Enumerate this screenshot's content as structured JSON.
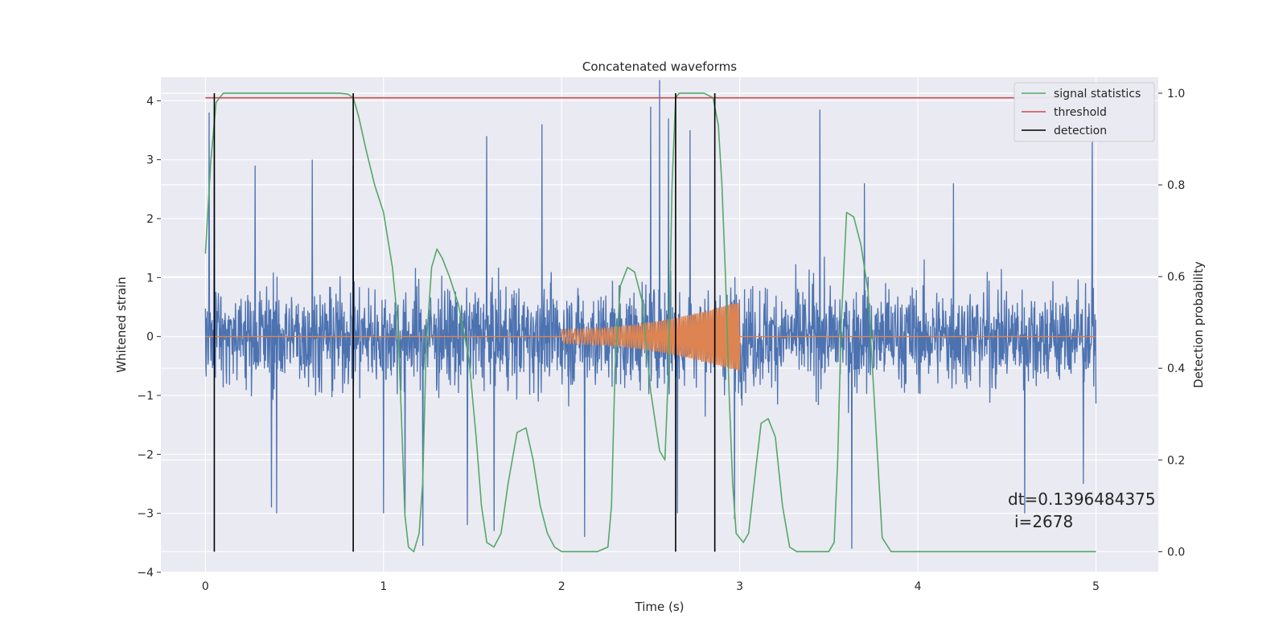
{
  "chart_data": {
    "type": "line",
    "title": "Concatenated waveforms",
    "xlabel": "Time (s)",
    "ylabel": "Whitened strain",
    "y2label": "Detection probability",
    "xlim": [
      -0.25,
      5.35
    ],
    "ylim": [
      -4.0,
      4.4
    ],
    "y2lim": [
      -0.045,
      1.035
    ],
    "xticks": [
      0,
      1,
      2,
      3,
      4,
      5
    ],
    "yticks": [
      -4,
      -3,
      -2,
      -1,
      0,
      1,
      2,
      3,
      4
    ],
    "y2ticks": [
      0.0,
      0.2,
      0.4,
      0.6,
      0.8,
      1.0
    ],
    "ytick_labels": [
      "−4",
      "−3",
      "−2",
      "−1",
      "0",
      "1",
      "2",
      "3",
      "4"
    ],
    "y2tick_labels": [
      "0.0",
      "0.2",
      "0.4",
      "0.6",
      "0.8",
      "1.0"
    ],
    "grid": true,
    "legend_position": "top-right",
    "annotation_dt": "dt=0.1396484375",
    "annotation_i": "i=2678",
    "series": [
      {
        "name": "",
        "axis": "left",
        "kind": "noise",
        "color": "#4c72b0",
        "x_range": [
          0,
          5
        ],
        "amplitude_envelope": 2.6,
        "spikes": [
          [
            0.02,
            3.8
          ],
          [
            0.05,
            3.7
          ],
          [
            0.28,
            2.9
          ],
          [
            0.37,
            -2.9
          ],
          [
            0.4,
            -3.0
          ],
          [
            0.6,
            3.0
          ],
          [
            0.83,
            2.9
          ],
          [
            1.0,
            -3.0
          ],
          [
            1.12,
            -3.0
          ],
          [
            1.22,
            -3.55
          ],
          [
            1.47,
            -3.2
          ],
          [
            1.58,
            3.4
          ],
          [
            1.62,
            -3.3
          ],
          [
            1.89,
            3.6
          ],
          [
            2.13,
            -3.4
          ],
          [
            2.5,
            3.9
          ],
          [
            2.55,
            4.35
          ],
          [
            2.6,
            3.7
          ],
          [
            2.65,
            -3.0
          ],
          [
            2.72,
            3.5
          ],
          [
            2.97,
            -3.1
          ],
          [
            3.45,
            3.85
          ],
          [
            3.63,
            -3.6
          ],
          [
            3.7,
            2.6
          ],
          [
            4.2,
            2.6
          ],
          [
            4.6,
            -3.0
          ],
          [
            4.93,
            -2.5
          ],
          [
            4.98,
            3.4
          ]
        ]
      },
      {
        "name": "",
        "axis": "left",
        "kind": "chirp",
        "color": "#dd8452",
        "x_range": [
          2.0,
          3.0
        ],
        "amplitude_start": 0.12,
        "amplitude_end": 0.6,
        "cycles": 55
      },
      {
        "name": "signal statistics",
        "axis": "right",
        "color": "#55a868",
        "x": [
          0,
          0.03,
          0.06,
          0.1,
          0.15,
          0.2,
          0.3,
          0.4,
          0.5,
          0.6,
          0.7,
          0.75,
          0.8,
          0.83,
          0.86,
          0.9,
          0.95,
          1.0,
          1.05,
          1.08,
          1.1,
          1.12,
          1.14,
          1.17,
          1.2,
          1.22,
          1.24,
          1.27,
          1.3,
          1.33,
          1.37,
          1.42,
          1.48,
          1.52,
          1.55,
          1.58,
          1.62,
          1.66,
          1.7,
          1.75,
          1.8,
          1.84,
          1.88,
          1.92,
          1.96,
          2.0,
          2.1,
          2.2,
          2.26,
          2.28,
          2.3,
          2.33,
          2.37,
          2.41,
          2.45,
          2.5,
          2.55,
          2.58,
          2.6,
          2.62,
          2.64,
          2.66,
          2.7,
          2.8,
          2.85,
          2.88,
          2.9,
          2.92,
          2.94,
          2.96,
          2.98,
          3.02,
          3.05,
          3.09,
          3.12,
          3.16,
          3.2,
          3.24,
          3.28,
          3.32,
          3.36,
          3.4,
          3.45,
          3.5,
          3.53,
          3.55,
          3.57,
          3.6,
          3.64,
          3.68,
          3.72,
          3.76,
          3.8,
          3.85,
          3.9,
          4.0,
          4.5,
          5.0
        ],
        "y": [
          0.65,
          0.85,
          0.98,
          1.0,
          1.0,
          1.0,
          1.0,
          1.0,
          1.0,
          1.0,
          1.0,
          1.0,
          0.998,
          0.99,
          0.95,
          0.88,
          0.8,
          0.74,
          0.62,
          0.5,
          0.3,
          0.08,
          0.01,
          0.0,
          0.04,
          0.15,
          0.45,
          0.62,
          0.66,
          0.64,
          0.6,
          0.54,
          0.42,
          0.25,
          0.1,
          0.02,
          0.01,
          0.04,
          0.15,
          0.26,
          0.27,
          0.2,
          0.1,
          0.04,
          0.01,
          0.0,
          0.0,
          0.0,
          0.01,
          0.1,
          0.4,
          0.58,
          0.62,
          0.61,
          0.55,
          0.35,
          0.22,
          0.2,
          0.4,
          0.8,
          0.99,
          1.0,
          1.0,
          1.0,
          0.99,
          0.93,
          0.8,
          0.6,
          0.35,
          0.15,
          0.04,
          0.02,
          0.04,
          0.18,
          0.28,
          0.29,
          0.25,
          0.1,
          0.01,
          0.0,
          0.0,
          0.0,
          0.0,
          0.0,
          0.02,
          0.2,
          0.5,
          0.74,
          0.73,
          0.67,
          0.57,
          0.3,
          0.03,
          0.0,
          0.0,
          0.0,
          0.0,
          0.0
        ]
      },
      {
        "name": "threshold",
        "axis": "right",
        "color": "#c44e52",
        "x": [
          0,
          5
        ],
        "y": [
          0.99,
          0.99
        ]
      },
      {
        "name": "detection",
        "axis": "right",
        "kind": "vlines",
        "color": "#000000",
        "x": [
          0.05,
          0.83,
          2.64,
          2.86
        ],
        "y_range": [
          0.0,
          1.0
        ]
      }
    ]
  }
}
